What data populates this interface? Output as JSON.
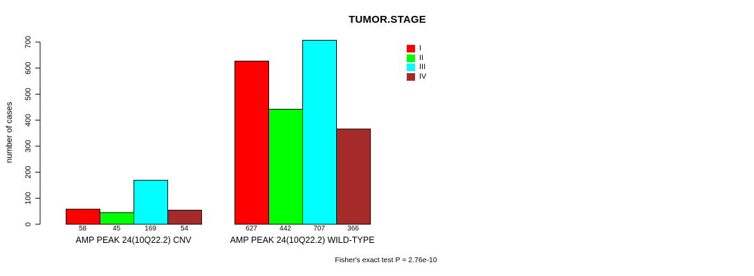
{
  "chart_data": {
    "type": "bar",
    "title": "TUMOR.STAGE",
    "ylabel": "number of cases",
    "ylim": [
      0,
      700
    ],
    "yticks": [
      0,
      100,
      200,
      300,
      400,
      500,
      600,
      700
    ],
    "grid": false,
    "legend_position": "top-right",
    "series": [
      {
        "name": "I",
        "color": "#FF0000"
      },
      {
        "name": "II",
        "color": "#00FF00"
      },
      {
        "name": "III",
        "color": "#00FFFF"
      },
      {
        "name": "IV",
        "color": "#A52A2A"
      }
    ],
    "groups": [
      {
        "label": "AMP PEAK 24(10Q22.2) CNV",
        "values": [
          58,
          45,
          169,
          54
        ]
      },
      {
        "label": "AMP PEAK 24(10Q22.2) WILD-TYPE",
        "values": [
          627,
          442,
          707,
          366
        ]
      }
    ],
    "footnote": "Fisher's exact test P = 2.76e-10"
  }
}
